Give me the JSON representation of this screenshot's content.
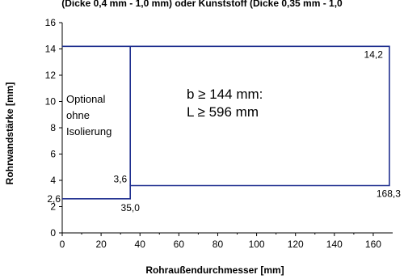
{
  "chart_data": {
    "type": "line",
    "title_fragment": "(Dicke 0,4 mm - 1,0 mm) oder Kunststoff (Dicke 0,35 mm - 1,0",
    "xlabel": "Rohraußendurchmesser [mm]",
    "ylabel": "Rohrwandstärke [mm]",
    "xlim": [
      0,
      170
    ],
    "ylim": [
      0,
      16
    ],
    "x_ticks": [
      "0",
      "20",
      "40",
      "60",
      "80",
      "100",
      "120",
      "140",
      "160"
    ],
    "y_ticks": [
      "0",
      "2",
      "4",
      "6",
      "8",
      "10",
      "12",
      "14",
      "16"
    ],
    "grid": false,
    "series": [
      {
        "x": [
          0,
          35.0,
          35.0,
          168.3,
          168.3,
          0
        ],
        "y": [
          2.6,
          2.6,
          3.6,
          3.6,
          14.2,
          14.2
        ]
      },
      {
        "x": [
          35.0,
          35.0
        ],
        "y": [
          3.6,
          14.2
        ]
      }
    ],
    "point_labels": [
      {
        "text": "2,6",
        "x": 0,
        "y": 2.6
      },
      {
        "text": "35,0",
        "x": 35.0,
        "y": 2.6
      },
      {
        "text": "3,6",
        "x": 35.0,
        "y": 3.6
      },
      {
        "text": "168,3",
        "x": 168.3,
        "y": 3.6
      },
      {
        "text": "14,2",
        "x": 168.3,
        "y": 14.2
      }
    ],
    "region_left": [
      "Optional",
      "ohne",
      "Isolierung"
    ],
    "region_right": [
      "b ≥ 144 mm:",
      "L ≥ 596 mm"
    ],
    "line_color": "#1f2f8f"
  }
}
